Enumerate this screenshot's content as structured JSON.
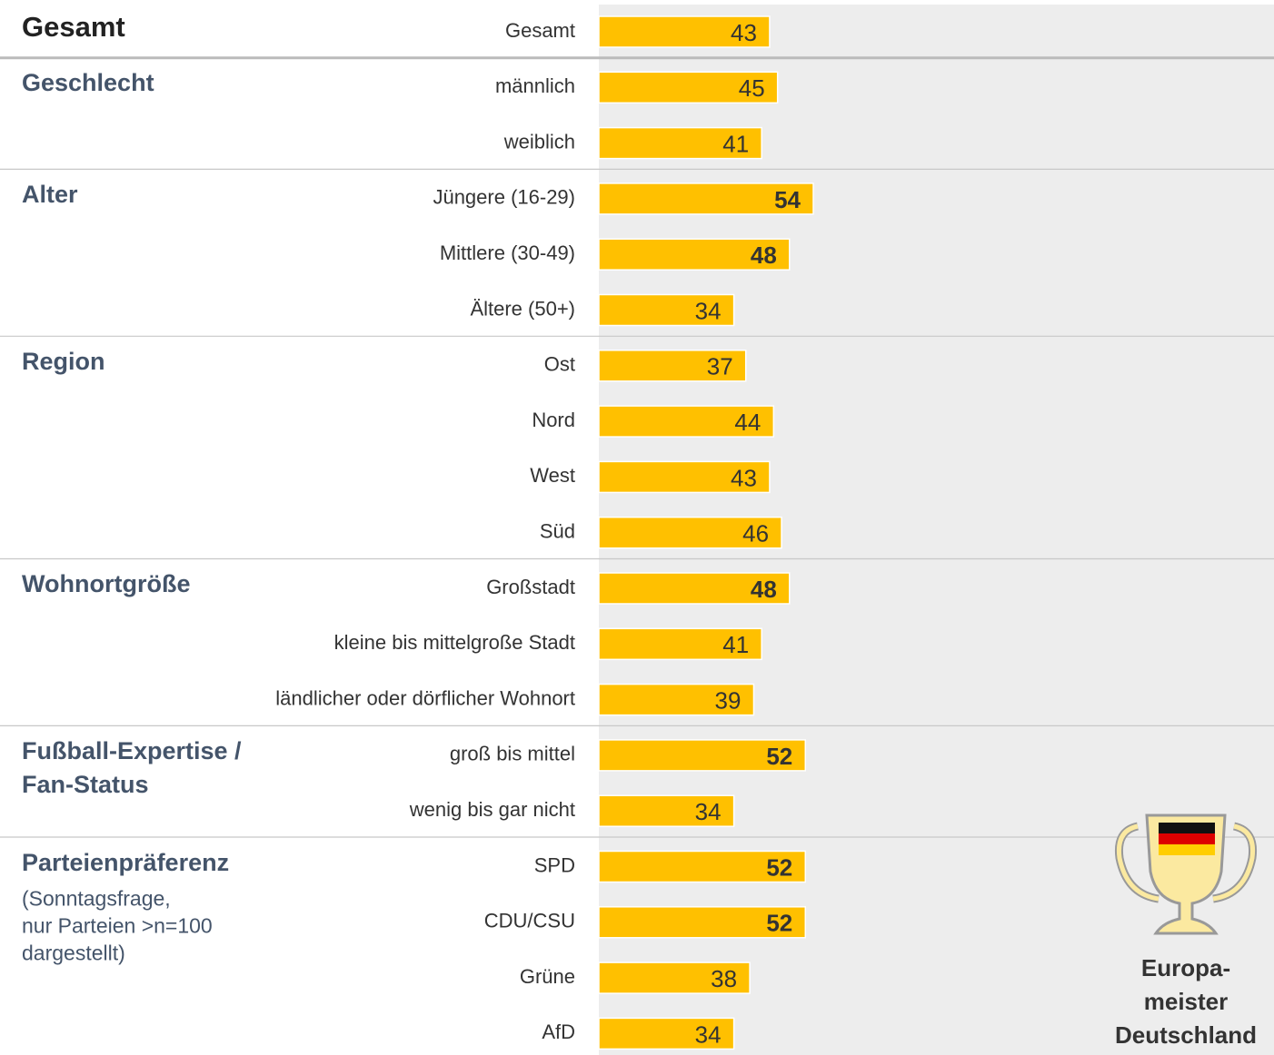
{
  "chart_data": {
    "type": "bar",
    "color": "#FFC000",
    "xlim": [
      0,
      170
    ],
    "groups": [
      {
        "name": "Gesamt",
        "categories": [
          "Gesamt"
        ],
        "values": [
          43
        ],
        "bold": [
          false
        ]
      },
      {
        "name": "Geschlecht",
        "categories": [
          "männlich",
          "weiblich"
        ],
        "values": [
          45,
          41
        ],
        "bold": [
          false,
          false
        ]
      },
      {
        "name": "Alter",
        "categories": [
          "Jüngere (16-29)",
          "Mittlere (30-49)",
          "Ältere (50+)"
        ],
        "values": [
          54,
          48,
          34
        ],
        "bold": [
          true,
          true,
          false
        ]
      },
      {
        "name": "Region",
        "categories": [
          "Ost",
          "Nord",
          "West",
          "Süd"
        ],
        "values": [
          37,
          44,
          43,
          46
        ],
        "bold": [
          false,
          false,
          false,
          false
        ]
      },
      {
        "name": "Wohnortgröße",
        "categories": [
          "Großstadt",
          "kleine bis mittelgroße Stadt",
          "ländlicher oder dörflicher Wohnort"
        ],
        "values": [
          48,
          41,
          39
        ],
        "bold": [
          true,
          false,
          false
        ]
      },
      {
        "name": "Fußball-Expertise / Fan-Status",
        "categories": [
          "groß bis mittel",
          "wenig bis gar nicht"
        ],
        "values": [
          52,
          34
        ],
        "bold": [
          true,
          false
        ]
      },
      {
        "name": "Parteienpräferenz",
        "note": [
          "(Sonntagsfrage,",
          "nur Parteien >n=100",
          "dargestellt)"
        ],
        "categories": [
          "SPD",
          "CDU/CSU",
          "Grüne",
          "AfD"
        ],
        "values": [
          52,
          52,
          38,
          34
        ],
        "bold": [
          true,
          true,
          false,
          false
        ]
      }
    ],
    "badge": [
      "Europa-",
      "meister",
      "Deutschland"
    ]
  }
}
